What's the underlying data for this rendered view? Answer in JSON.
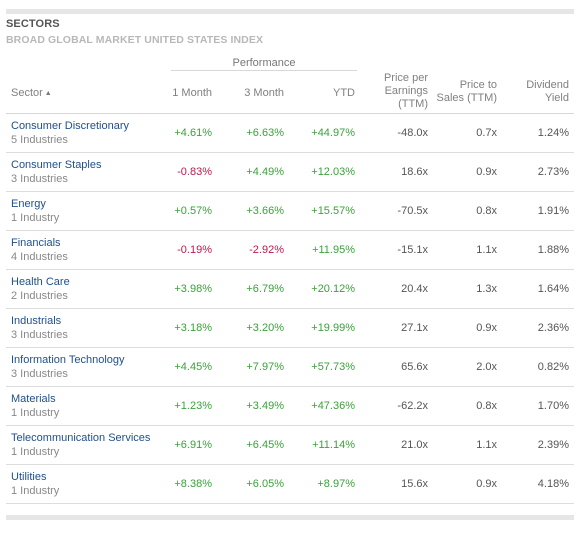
{
  "header": {
    "title": "SECTORS",
    "subtitle": "BROAD GLOBAL MARKET UNITED STATES INDEX"
  },
  "columns": {
    "performance_group": "Performance",
    "sector": "Sector",
    "month1": "1 Month",
    "month3": "3 Month",
    "ytd": "YTD",
    "pe_line1": "Price per",
    "pe_line2": "Earnings",
    "pe_line3": "(TTM)",
    "ps_line1": "Price to",
    "ps_line2": "Sales (TTM)",
    "div_line1": "Dividend",
    "div_line2": "Yield"
  },
  "icons": {
    "sort": "sort-ascending-icon",
    "sort_glyph": "▲"
  },
  "colors": {
    "link": "#1f4f8e",
    "positive": "#3aa23a",
    "negative": "#c0184a"
  },
  "rows": [
    {
      "name": "Consumer Discretionary",
      "sub": "5 Industries",
      "m1": "+4.61%",
      "m3": "+6.63%",
      "ytd": "+44.97%",
      "pe": "-48.0x",
      "ps": "0.7x",
      "div": "1.24%"
    },
    {
      "name": "Consumer Staples",
      "sub": "3 Industries",
      "m1": "-0.83%",
      "m3": "+4.49%",
      "ytd": "+12.03%",
      "pe": "18.6x",
      "ps": "0.9x",
      "div": "2.73%"
    },
    {
      "name": "Energy",
      "sub": "1 Industry",
      "m1": "+0.57%",
      "m3": "+3.66%",
      "ytd": "+15.57%",
      "pe": "-70.5x",
      "ps": "0.8x",
      "div": "1.91%"
    },
    {
      "name": "Financials",
      "sub": "4 Industries",
      "m1": "-0.19%",
      "m3": "-2.92%",
      "ytd": "+11.95%",
      "pe": "-15.1x",
      "ps": "1.1x",
      "div": "1.88%"
    },
    {
      "name": "Health Care",
      "sub": "2 Industries",
      "m1": "+3.98%",
      "m3": "+6.79%",
      "ytd": "+20.12%",
      "pe": "20.4x",
      "ps": "1.3x",
      "div": "1.64%"
    },
    {
      "name": "Industrials",
      "sub": "3 Industries",
      "m1": "+3.18%",
      "m3": "+3.20%",
      "ytd": "+19.99%",
      "pe": "27.1x",
      "ps": "0.9x",
      "div": "2.36%"
    },
    {
      "name": "Information Technology",
      "sub": "3 Industries",
      "m1": "+4.45%",
      "m3": "+7.97%",
      "ytd": "+57.73%",
      "pe": "65.6x",
      "ps": "2.0x",
      "div": "0.82%"
    },
    {
      "name": "Materials",
      "sub": "1 Industry",
      "m1": "+1.23%",
      "m3": "+3.49%",
      "ytd": "+47.36%",
      "pe": "-62.2x",
      "ps": "0.8x",
      "div": "1.70%"
    },
    {
      "name": "Telecommunication Services",
      "sub": "1 Industry",
      "m1": "+6.91%",
      "m3": "+6.45%",
      "ytd": "+11.14%",
      "pe": "21.0x",
      "ps": "1.1x",
      "div": "2.39%"
    },
    {
      "name": "Utilities",
      "sub": "1 Industry",
      "m1": "+8.38%",
      "m3": "+6.05%",
      "ytd": "+8.97%",
      "pe": "15.6x",
      "ps": "0.9x",
      "div": "4.18%"
    }
  ]
}
